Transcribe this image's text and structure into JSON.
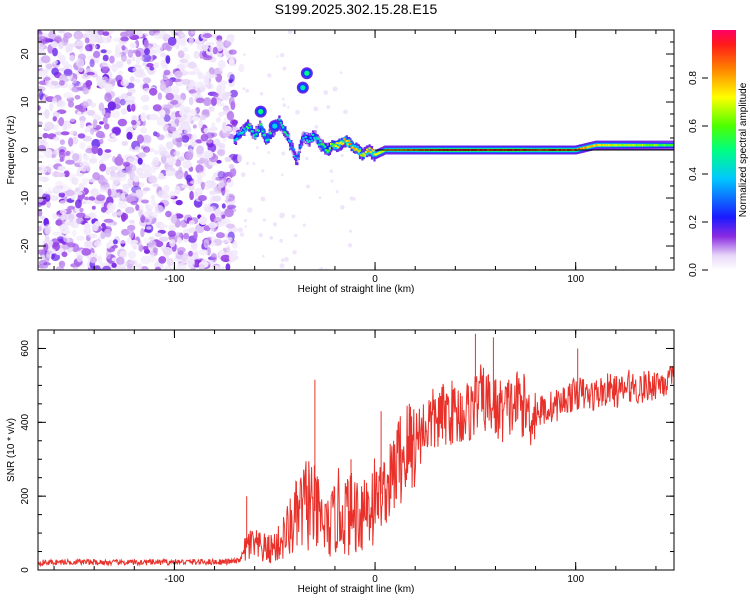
{
  "title": "S199.2025.302.15.28.E15",
  "chart_data": [
    {
      "type": "heatmap",
      "name": "spectrogram",
      "xlabel": "Height of straight line (km)",
      "ylabel": "Frequency (Hz)",
      "xlim": [
        -168,
        149
      ],
      "ylim": [
        -25,
        25
      ],
      "xticks": [
        -100,
        0,
        100
      ],
      "yticks": [
        -20,
        -10,
        0,
        10,
        20
      ],
      "tick_labels_x": [
        "-100",
        "0",
        "100"
      ],
      "tick_labels_y": [
        "-20",
        "-10",
        "0",
        "10",
        "20"
      ],
      "noise_region_x": [
        -168,
        -70
      ],
      "signal_track": {
        "x": [
          -70,
          -66,
          -63,
          -60,
          -57,
          -54,
          -51,
          -48,
          -45,
          -42,
          -39,
          -36,
          -33,
          -30,
          -27,
          -24,
          -21,
          -18,
          -15,
          -12,
          -9,
          -6,
          -3,
          0,
          5,
          10,
          20,
          30,
          40,
          50,
          60,
          70,
          80,
          90,
          100,
          110,
          120,
          130,
          140,
          149
        ],
        "y": [
          2,
          4,
          5,
          3,
          5,
          2,
          4,
          6,
          4,
          1,
          -2,
          3,
          2,
          3,
          1,
          0,
          1,
          1,
          2,
          1,
          0,
          -1,
          0,
          -1,
          0,
          0,
          0,
          0,
          0,
          0,
          0,
          0,
          0,
          0,
          0,
          1,
          1,
          1,
          1,
          1
        ],
        "peak_amplitude": [
          0.4,
          0.45,
          0.5,
          0.45,
          0.55,
          0.5,
          0.45,
          0.4,
          0.5,
          0.3,
          0.3,
          0.35,
          0.4,
          0.45,
          0.5,
          0.55,
          0.65,
          0.75,
          0.8,
          0.8,
          0.7,
          0.7,
          0.75,
          0.75,
          0.7,
          0.75,
          0.8,
          0.9,
          0.95,
          0.9,
          0.9,
          0.95,
          0.85,
          0.9,
          0.85,
          0.75,
          0.7,
          0.65,
          0.6,
          0.55
        ]
      },
      "blobs": [
        {
          "x": -34,
          "y": 16,
          "amp": 0.5
        },
        {
          "x": -36,
          "y": 13,
          "amp": 0.45
        },
        {
          "x": -57,
          "y": 8,
          "amp": 0.5
        },
        {
          "x": -50,
          "y": 5,
          "amp": 0.4
        }
      ],
      "colorbar": {
        "label": "Normalized spectral amplitude",
        "ticks": [
          0.0,
          0.2,
          0.4,
          0.6,
          0.8
        ],
        "tick_labels": [
          "0.0",
          "0.2",
          "0.4",
          "0.6",
          "0.8"
        ],
        "range": [
          0,
          1
        ]
      }
    },
    {
      "type": "line",
      "name": "snr",
      "xlabel": "Height of straight line (km)",
      "ylabel": "SNR (10 * v/v)",
      "xlim": [
        -168,
        149
      ],
      "ylim": [
        0,
        650
      ],
      "xticks": [
        -100,
        0,
        100
      ],
      "yticks": [
        0,
        200,
        400,
        600
      ],
      "tick_labels_x": [
        "-100",
        "0",
        "100"
      ],
      "tick_labels_y": [
        "0",
        "200",
        "400",
        "600"
      ],
      "color": "#e8312a",
      "series": [
        {
          "name": "SNR",
          "x": [
            -168,
            -150,
            -130,
            -110,
            -90,
            -75,
            -68,
            -63,
            -58,
            -53,
            -48,
            -43,
            -38,
            -33,
            -28,
            -23,
            -18,
            -13,
            -8,
            -3,
            2,
            7,
            12,
            17,
            22,
            27,
            32,
            37,
            42,
            47,
            52,
            57,
            62,
            67,
            72,
            77,
            82,
            87,
            92,
            97,
            102,
            107,
            112,
            117,
            122,
            127,
            132,
            137,
            142,
            149
          ],
          "y": [
            20,
            22,
            20,
            21,
            22,
            22,
            24,
            70,
            60,
            55,
            70,
            110,
            150,
            190,
            140,
            110,
            160,
            150,
            160,
            180,
            200,
            230,
            300,
            330,
            370,
            400,
            410,
            430,
            420,
            430,
            470,
            450,
            430,
            440,
            460,
            420,
            430,
            440,
            450,
            470,
            480,
            470,
            480,
            490,
            480,
            500,
            490,
            500,
            510,
            510
          ]
        }
      ],
      "spikes": [
        {
          "x": -64,
          "y": 200
        },
        {
          "x": -30,
          "y": 515
        },
        {
          "x": -12,
          "y": 300
        },
        {
          "x": 3,
          "y": 430
        },
        {
          "x": 50,
          "y": 640
        },
        {
          "x": 59,
          "y": 630
        },
        {
          "x": 101,
          "y": 600
        }
      ]
    }
  ]
}
